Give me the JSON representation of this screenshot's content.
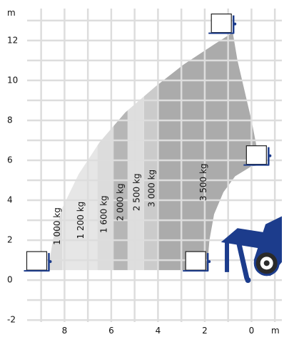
{
  "chart_data": {
    "type": "area",
    "title": "",
    "x_unit_label": "m",
    "y_unit_label": "m",
    "x_direction": "reversed",
    "xlim": [
      9.6,
      -1.3
    ],
    "ylim": [
      -2.1,
      13.6
    ],
    "x_ticks": [
      8,
      6,
      4,
      2,
      0
    ],
    "x_tick_labels": [
      "8",
      "6",
      "4",
      "2",
      "0"
    ],
    "y_ticks": [
      -2,
      0,
      2,
      4,
      6,
      8,
      10,
      12
    ],
    "y_tick_labels": [
      "-2",
      "0",
      "2",
      "4",
      "6",
      "8",
      "10",
      "12"
    ],
    "grid": true,
    "envelope": {
      "outer_boom_arc": [
        [
          8.7,
          0.5
        ],
        [
          8.5,
          2.0
        ],
        [
          8.1,
          3.6
        ],
        [
          7.4,
          5.3
        ],
        [
          6.5,
          6.9
        ],
        [
          5.4,
          8.4
        ],
        [
          4.1,
          9.7
        ],
        [
          2.9,
          10.8
        ],
        [
          1.6,
          11.8
        ],
        [
          0.8,
          12.4
        ]
      ],
      "front_edge": [
        [
          0.8,
          12.4
        ],
        [
          0.6,
          11.0
        ],
        [
          0.3,
          9.5
        ],
        [
          0.0,
          8.0
        ],
        [
          -0.2,
          6.8
        ],
        [
          -0.4,
          6.1
        ],
        [
          -0.7,
          5.8
        ]
      ],
      "inner_edge": [
        [
          -0.7,
          5.8
        ],
        [
          0.0,
          5.7
        ],
        [
          0.7,
          5.2
        ],
        [
          1.2,
          4.4
        ],
        [
          1.6,
          3.3
        ],
        [
          1.8,
          2.0
        ],
        [
          1.9,
          0.6
        ]
      ],
      "bottom_y": 0.5
    },
    "load_zones": [
      {
        "label": "1 000 kg",
        "x_range": [
          9.6,
          8.1
        ],
        "label_x": 8.3,
        "label_y": 2.7,
        "color": "#dcdcdc"
      },
      {
        "label": "1 200 kg",
        "x_range": [
          8.1,
          6.6
        ],
        "label_x": 7.3,
        "label_y": 3.0,
        "color": "#e6e6e6"
      },
      {
        "label": "1 600 kg",
        "x_range": [
          6.6,
          5.9
        ],
        "label_x": 6.3,
        "label_y": 3.3,
        "color": "#dcdcdc"
      },
      {
        "label": "2 000 kg",
        "x_range": [
          5.9,
          5.3
        ],
        "label_x": 5.6,
        "label_y": 3.9,
        "color": "#b6b6b6"
      },
      {
        "label": "2 500 kg",
        "x_range": [
          5.3,
          4.6
        ],
        "label_x": 4.9,
        "label_y": 4.4,
        "color": "#dedede"
      },
      {
        "label": "3 000 kg",
        "x_range": [
          4.6,
          4.0
        ],
        "label_x": 4.25,
        "label_y": 4.6,
        "color": "#cbcbcb"
      },
      {
        "label": "3 500 kg",
        "x_range": [
          4.0,
          -1.0
        ],
        "label_x": 2.05,
        "label_y": 4.9,
        "color": "#ababab"
      }
    ],
    "fork_positions": [
      [
        8.7,
        0.5
      ],
      [
        0.8,
        12.4
      ],
      [
        -0.7,
        5.8
      ],
      [
        1.9,
        0.5
      ]
    ],
    "colors": {
      "machine": "#1c3c8c",
      "tire": "#2a2a2a",
      "hub": "#ffffff",
      "grid": "#dddddd"
    }
  }
}
